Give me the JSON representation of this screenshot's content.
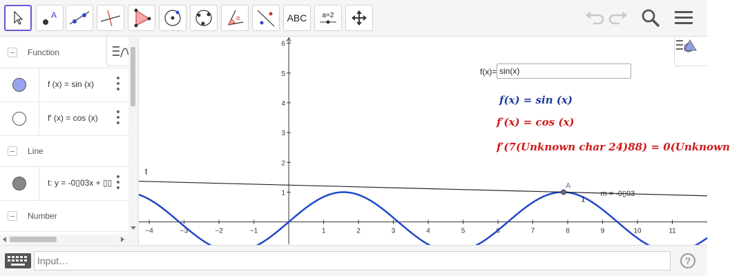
{
  "toolbar": {
    "tools": [
      {
        "name": "move-tool",
        "label": ""
      },
      {
        "name": "point-tool",
        "label": "A"
      },
      {
        "name": "line-tool",
        "label": ""
      },
      {
        "name": "perpendicular-line-tool",
        "label": ""
      },
      {
        "name": "polygon-tool",
        "label": ""
      },
      {
        "name": "circle-center-tool",
        "label": ""
      },
      {
        "name": "circle-three-points-tool",
        "label": ""
      },
      {
        "name": "angle-tool",
        "label": "α"
      },
      {
        "name": "reflect-tool",
        "label": ""
      },
      {
        "name": "text-tool",
        "label": "ABC"
      },
      {
        "name": "slider-tool",
        "label": "a=2"
      },
      {
        "name": "move-graphics-tool",
        "label": ""
      }
    ],
    "right": [
      "undo-icon",
      "redo-icon",
      "search-icon",
      "menu-icon"
    ],
    "accent_color": "#6557d2"
  },
  "algebra": {
    "groups": [
      {
        "header": "Function"
      },
      {
        "header": "Line"
      },
      {
        "header": "Number"
      }
    ],
    "items": [
      {
        "formula": "f (x)  =  sin (x)",
        "color": "#99a3ef"
      },
      {
        "formula": "f′ (x)  =  cos (x)",
        "color": "#ffffff"
      },
      {
        "formula": "t: y = -0▯03x + ▯▯",
        "color": "#888888"
      }
    ]
  },
  "graphics": {
    "inputbox_label": "f(x)=",
    "inputbox_value": "sin(x)",
    "text_f": "f(x) = sin (x)",
    "text_fprime": "f′(x) = cos (x)",
    "text_fprime_eval": "f′(7(Unknown char 24)88) = 0(Unknown",
    "point_label": "A",
    "line_label": "t",
    "slope_label": "m = -0▯03",
    "slope_run_label": "1",
    "curve_color": "#1f47c9",
    "text_blue": "#1f3a9c",
    "text_red": "#d01a1a"
  },
  "chart_data": {
    "type": "line",
    "title": "",
    "xlabel": "",
    "ylabel": "",
    "x_ticks": [
      -4,
      -3,
      -2,
      -1,
      1,
      2,
      3,
      4,
      5,
      6,
      7,
      8,
      9,
      10,
      11
    ],
    "y_ticks": [
      1,
      2,
      3,
      4,
      5,
      6
    ],
    "xlim": [
      -4.3,
      12
    ],
    "ylim": [
      -0.75,
      6.2
    ],
    "series": [
      {
        "function": "sin(x)"
      },
      {
        "function": "tangent",
        "slope": -0.03,
        "point": [
          7.88,
          1.0
        ]
      }
    ],
    "points": [
      {
        "label": "A",
        "x": 7.88,
        "y": 1.0
      }
    ],
    "grid": false
  },
  "input_bar": {
    "placeholder": "Input…",
    "help_label": "?"
  }
}
